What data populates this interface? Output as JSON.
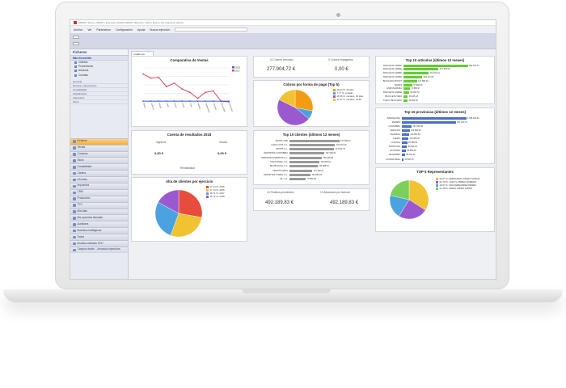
{
  "window": {
    "title": "a3ERP | Demo | DEMO | Empresa: Modelo DEMO | Ejercicio: 2018 | Idioma: ES | Ejercicio abierto"
  },
  "menu": {
    "items": [
      "Archivo",
      "Ver",
      "Parámetros",
      "Configuración",
      "Ayuda",
      "Buscar ejecutivo"
    ]
  },
  "sidebar": {
    "header": "Ficheros",
    "group_title": "Más frecuentes",
    "items": [
      "Clientes",
      "Proveedores",
      "Artículos",
      "Cuentas"
    ],
    "sections": [
      "General",
      "Precios y descuentos",
      "Contabilidad",
      "Clasificación",
      "Impuestos",
      "Otros"
    ],
    "tabs": [
      "Ficheros",
      "Ventas",
      "Compras",
      "Stock",
      "Contabilidad",
      "Cartera",
      "Informes",
      "Impuestos",
      "CRM",
      "Producción",
      "TPV",
      "Mis lirias",
      "Mis opciones favoritas",
      "Auxiliares",
      "Business Intelligence",
      "Ticket",
      "Modelos oficiales 2017",
      "Campus desde ...formación ejercicios"
    ]
  },
  "doc_tab": "Cuadro de mando",
  "sales_chart": {
    "title": "Comparativa de Ventas",
    "legend": [
      "2018",
      "2017"
    ],
    "months": [
      "Enero",
      "Febrero",
      "Marzo",
      "Abril",
      "Mayo",
      "Junio",
      "Julio",
      "Agosto",
      "Septiembre",
      "Octubre",
      "Noviembre",
      "Diciembre"
    ]
  },
  "results": {
    "title": "Cuenta de resultados 2018",
    "income_label": "Ingresos",
    "expense_label": "Gastos",
    "income_value": "0,00 €",
    "expense_value": "0,00 €",
    "profit_label": "Rentabilidad"
  },
  "clients_pie": {
    "title": "Alta de clientes por ejercicio",
    "legend": [
      "27,14 %: 2015",
      "27,14 %: 2016",
      "26,71 %: 2017",
      "16,71 %: 2018"
    ]
  },
  "kpis": {
    "sold_label": "11 Cobros vencidos",
    "sold_value": "277.904,72 €",
    "unpaid_label": "0 Cobros impagados",
    "unpaid_value": "0,00 €",
    "pending_label": "13 Pedidos pendientes",
    "pending_value": "492.189,83 €",
    "delivery_label": "13 Albaranes por facturar",
    "delivery_value": "492.189,83 €"
  },
  "payments_pie": {
    "title": "Cobros por forma de pago (Top 5)",
    "legend": [
      "28,23 %: 30 días",
      "7,77 %: contado",
      "46,55 %: contado, 30 días",
      "17,67 %: contado, 30,60"
    ]
  },
  "top_clients": {
    "title": "Top 10 clientes (últimos 12 meses)",
    "rows": [
      {
        "label": "SPORT LINE",
        "value": "237.955,00"
      },
      {
        "label": "CAFE CLUB, S.L.",
        "value": "218.161,18"
      },
      {
        "label": "SPORT, S.L.",
        "value": "213.511,70"
      },
      {
        "label": "DEPORTES CANTABRIA",
        "value": "167.028,32"
      },
      {
        "label": "DEPORTES PIRINEOS S.L.",
        "value": "155.426,69"
      },
      {
        "label": "VAHALANDA, S.A.",
        "value": "144.005,01"
      },
      {
        "label": "BICI BLANCA, S.L.",
        "value": "134.688,64"
      },
      {
        "label": "SPORTS MAÑA",
        "value": "111.156,97"
      },
      {
        "label": "DEPORTES LORES, S.L.",
        "value": "101.862,63"
      },
      {
        "label": "GIL, S.L.",
        "value": "79.582,99"
      }
    ]
  },
  "top_articles": {
    "title": "Top 10 artículos (últimos 12 meses)",
    "rows": [
      {
        "label": "BICICLETA CARRE",
        "value": "689.332,74"
      },
      {
        "label": "BICICLETA CARRE",
        "value": "377.687,64"
      },
      {
        "label": "BICICLETA CARRE",
        "value": "271.511,01"
      },
      {
        "label": "BICICLETA CARRE",
        "value": "204.431,05"
      },
      {
        "label": "BICICLETA MOUNT",
        "value": "147.880,00"
      },
      {
        "label": "MAPAS",
        "value": "97.863,19"
      },
      {
        "label": "EMPUÑADURA",
        "value": "71.560,97"
      },
      {
        "label": "BICICLETA CARRE",
        "value": "65.006,70"
      },
      {
        "label": "BICICLETA TREK",
        "value": "50.005,43"
      },
      {
        "label": "CASCO BICICLETA",
        "value": "48.004,09"
      }
    ]
  },
  "top_provinces": {
    "title": "Top 15 provincias (últimos 12 meses)",
    "rows": [
      {
        "label": "BARCELONA",
        "value": "1.068.190,81"
      },
      {
        "label": "MADRID",
        "value": "897.160,70"
      },
      {
        "label": "CANTABRIA",
        "value": "167.028,38"
      },
      {
        "label": "BADAJOZ",
        "value": "133.886,93"
      },
      {
        "label": "VALENCIA",
        "value": "123.081,85"
      },
      {
        "label": "LLEIDA",
        "value": "114.008,32"
      },
      {
        "label": "LA RIOJA",
        "value": "93.688,64"
      },
      {
        "label": "ZARAGOZA",
        "value": "89.992,19"
      },
      {
        "label": "ASTURIAS",
        "value": "69.890,99"
      },
      {
        "label": "BALEARES",
        "value": "58.190,11"
      },
      {
        "label": "CIUDAD REAL",
        "value": "31.900,15"
      }
    ]
  },
  "reps_pie": {
    "title": "TOP 5 Representantes",
    "legend": [
      "34,07 %: FERNANDO GÓMEZ GARCÍA",
      "24,78 %: JUAN V. PÉREZ ROMERO",
      "19,67 %: ANA FERNÁNDEZ PÉREZ",
      "21,48 %: MARIA LÓPEZ LÓPEZ"
    ]
  },
  "colors": {
    "series_2018": "#3a5fcd",
    "series_2017": "#e04a5a",
    "bar_green": "#66cc33",
    "bar_gray": "#9a9a9a",
    "bar_blue": "#4a6fc7",
    "pie": [
      "#9b59d0",
      "#f1c232",
      "#f39c12",
      "#4aa3df",
      "#e74c3c",
      "#7bcf5b"
    ]
  }
}
